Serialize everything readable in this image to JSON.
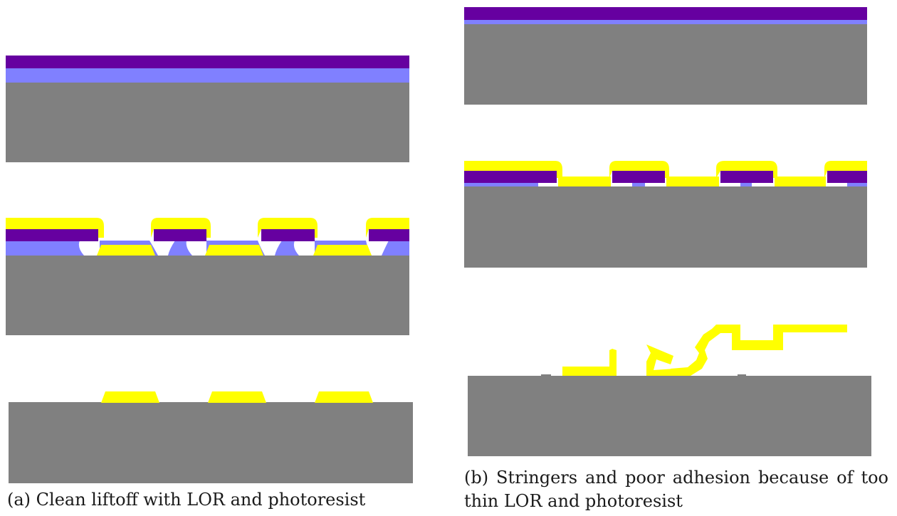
{
  "colors": {
    "substrate": "#808080",
    "lor": "#8080ff",
    "photoresist": "#6600a0",
    "metal": "#ffff00",
    "background": "#ffffff"
  },
  "captions": {
    "a": "(a) Clean liftoff with LOR and photoresist",
    "b": "(b) Stringers and poor adhesion because of too thin LOR and photoresist"
  },
  "panels": [
    {
      "id": "a",
      "steps": [
        "resist-stack",
        "metal-deposition",
        "after-liftoff"
      ],
      "result": "clean"
    },
    {
      "id": "b",
      "steps": [
        "resist-stack",
        "metal-deposition",
        "after-liftoff"
      ],
      "result": "stringers-and-poor-adhesion"
    }
  ]
}
